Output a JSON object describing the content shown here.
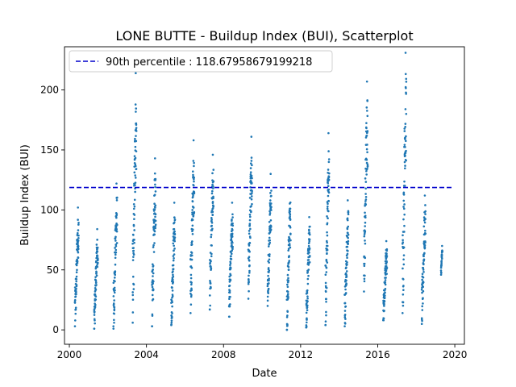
{
  "chart_data": {
    "type": "scatter",
    "title": "LONE BUTTE - Buildup Index (BUI), Scatterplot",
    "xlabel": "Date",
    "ylabel": "Buildup Index (BUI)",
    "xlim": [
      "1999-10-01",
      "2020-07-01"
    ],
    "ylim": [
      -12,
      236
    ],
    "x_ticks": [
      "2000",
      "2004",
      "2008",
      "2012",
      "2016",
      "2020"
    ],
    "y_ticks": [
      0,
      50,
      100,
      150,
      200
    ],
    "grid": false,
    "legend_position": "top-left",
    "legend": {
      "label": "90th percentile : 118.67958679199218",
      "color": "#0000cc",
      "style": "dashed"
    },
    "percentile_line": {
      "value": 118.68,
      "x_start": "2000-01-01",
      "x_end": "2019-12-01"
    },
    "point_color": "#1f77b4",
    "seasons": [
      {
        "start": "2000-04-15",
        "end": "2000-06-25",
        "min": 3,
        "max": 102
      },
      {
        "start": "2001-04-15",
        "end": "2001-06-25",
        "min": 1,
        "max": 84
      },
      {
        "start": "2002-04-15",
        "end": "2002-06-25",
        "min": 1,
        "max": 122
      },
      {
        "start": "2003-04-15",
        "end": "2003-06-25",
        "min": 6,
        "max": 214
      },
      {
        "start": "2004-04-15",
        "end": "2004-06-25",
        "min": 3,
        "max": 143
      },
      {
        "start": "2005-04-15",
        "end": "2005-06-25",
        "min": 4,
        "max": 106
      },
      {
        "start": "2006-04-15",
        "end": "2006-06-25",
        "min": 14,
        "max": 158
      },
      {
        "start": "2007-04-15",
        "end": "2007-06-25",
        "min": 17,
        "max": 146
      },
      {
        "start": "2008-04-15",
        "end": "2008-06-25",
        "min": 11,
        "max": 106
      },
      {
        "start": "2009-04-15",
        "end": "2009-06-25",
        "min": 26,
        "max": 161
      },
      {
        "start": "2010-04-15",
        "end": "2010-06-25",
        "min": 20,
        "max": 130
      },
      {
        "start": "2011-04-15",
        "end": "2011-06-25",
        "min": 0,
        "max": 118
      },
      {
        "start": "2012-04-15",
        "end": "2012-06-25",
        "min": 2,
        "max": 94
      },
      {
        "start": "2013-04-15",
        "end": "2013-06-25",
        "min": 4,
        "max": 164
      },
      {
        "start": "2014-04-15",
        "end": "2014-06-25",
        "min": 3,
        "max": 108
      },
      {
        "start": "2015-04-15",
        "end": "2015-06-25",
        "min": 32,
        "max": 207
      },
      {
        "start": "2016-04-15",
        "end": "2016-06-25",
        "min": 8,
        "max": 74
      },
      {
        "start": "2017-04-15",
        "end": "2017-06-25",
        "min": 14,
        "max": 231
      },
      {
        "start": "2018-04-15",
        "end": "2018-06-25",
        "min": 5,
        "max": 112
      },
      {
        "start": "2019-04-15",
        "end": "2019-05-10",
        "min": 46,
        "max": 70
      }
    ]
  }
}
